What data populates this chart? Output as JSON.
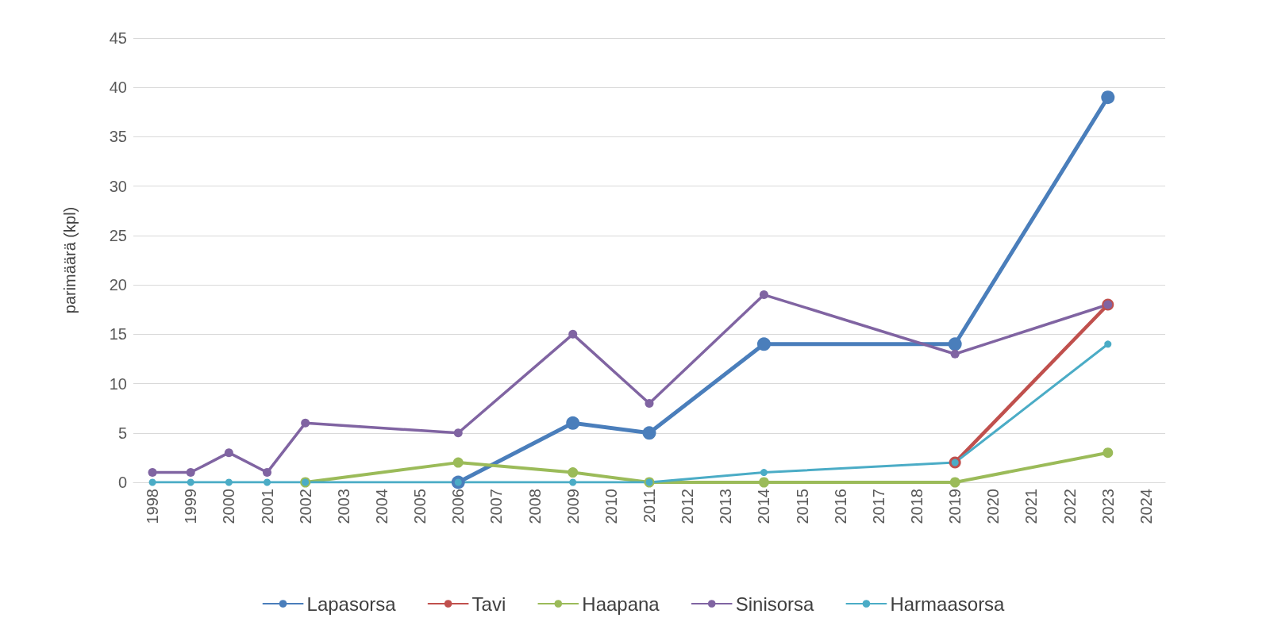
{
  "chart_data": {
    "type": "line",
    "ylabel": "parimäärä (kpl)",
    "categories": [
      "1998",
      "1999",
      "2000",
      "2001",
      "2002",
      "2003",
      "2004",
      "2005",
      "2006",
      "2007",
      "2008",
      "2009",
      "2010",
      "2011",
      "2012",
      "2013",
      "2014",
      "2015",
      "2016",
      "2017",
      "2018",
      "2019",
      "2020",
      "2021",
      "2022",
      "2023",
      "2024"
    ],
    "series": [
      {
        "name": "Lapasorsa",
        "color": "#4a7ebb",
        "values": [
          null,
          null,
          null,
          null,
          null,
          null,
          null,
          null,
          0,
          null,
          null,
          6,
          null,
          5,
          null,
          null,
          14,
          null,
          null,
          null,
          null,
          14,
          null,
          null,
          null,
          39,
          null
        ]
      },
      {
        "name": "Tavi",
        "color": "#c0504d",
        "values": [
          null,
          null,
          null,
          null,
          null,
          null,
          null,
          null,
          null,
          null,
          null,
          null,
          null,
          null,
          null,
          null,
          null,
          null,
          null,
          null,
          null,
          2,
          null,
          null,
          null,
          18,
          null
        ]
      },
      {
        "name": "Haapana",
        "color": "#9bbb59",
        "values": [
          null,
          null,
          null,
          null,
          0,
          null,
          null,
          null,
          2,
          null,
          null,
          1,
          null,
          0,
          null,
          null,
          0,
          null,
          null,
          null,
          null,
          0,
          null,
          null,
          null,
          3,
          null
        ]
      },
      {
        "name": "Sinisorsa",
        "color": "#8064a2",
        "values": [
          1,
          1,
          3,
          1,
          6,
          null,
          null,
          null,
          5,
          null,
          null,
          15,
          null,
          8,
          null,
          null,
          19,
          null,
          null,
          null,
          null,
          13,
          null,
          null,
          null,
          18,
          null
        ]
      },
      {
        "name": "Harmaasorsa",
        "color": "#4bacc6",
        "values": [
          0,
          0,
          0,
          0,
          0,
          null,
          null,
          null,
          0,
          null,
          null,
          0,
          null,
          0,
          null,
          null,
          1,
          null,
          null,
          null,
          null,
          2,
          null,
          null,
          null,
          14,
          null
        ]
      }
    ],
    "ylim": [
      0,
      45
    ],
    "yticks": [
      0,
      5,
      10,
      15,
      20,
      25,
      30,
      35,
      40,
      45
    ],
    "grid": "y",
    "legend": "bottom",
    "marker": "circle",
    "line_style": "solid"
  }
}
